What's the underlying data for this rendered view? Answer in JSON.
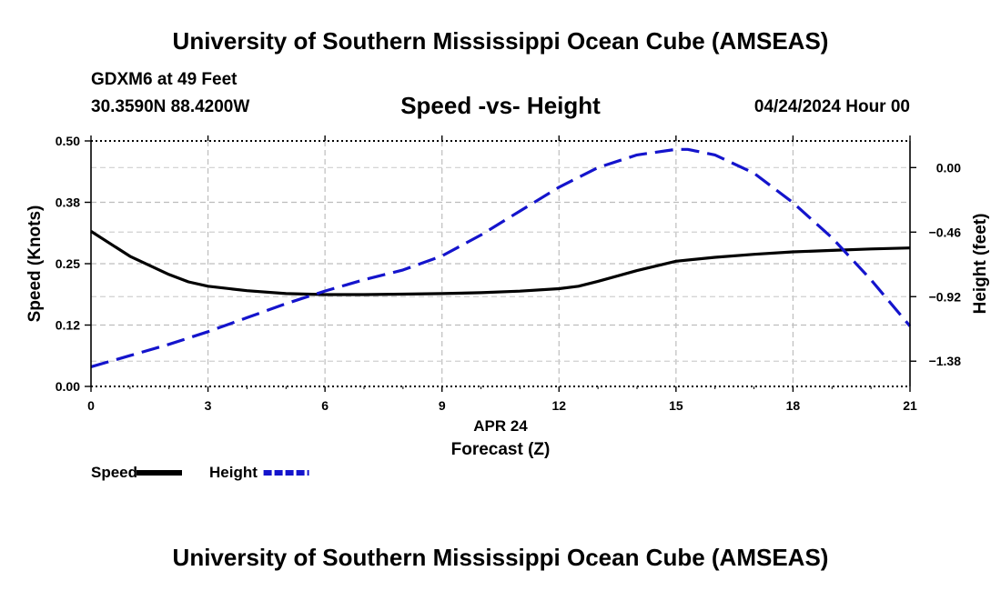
{
  "header": {
    "title": "University of Southern Mississippi Ocean Cube (AMSEAS)",
    "station": "GDXM6 at 49 Feet",
    "coordinates": "30.3590N  88.4200W",
    "datetime": "04/24/2024 Hour 00"
  },
  "footer": {
    "title": "University of Southern Mississippi Ocean Cube (AMSEAS)"
  },
  "chart_data": {
    "type": "line",
    "title": "Speed -vs- Height",
    "xlabel": "Forecast (Z)",
    "xlabel_date": "APR 24",
    "ylabel": "Speed (Knots)",
    "ylabel_right": "Height (feet)",
    "xlim": [
      0,
      21
    ],
    "ylim": [
      0,
      0.5
    ],
    "ylim_right": [
      -1.56,
      0.19
    ],
    "x_ticks": [
      0,
      3,
      6,
      9,
      12,
      15,
      18,
      21
    ],
    "x_tick_labels": [
      "0",
      "3",
      "6",
      "9",
      "12",
      "15",
      "18",
      "21"
    ],
    "y_ticks": [
      0,
      0.125,
      0.25,
      0.375,
      0.5
    ],
    "y_tick_labels": [
      "0.00",
      "0.12",
      "0.25",
      "0.38",
      "0.50"
    ],
    "y_right_ticks": [
      0.0,
      -0.46,
      -0.92,
      -1.38
    ],
    "y_right_tick_labels": [
      "0.00",
      "−0.46",
      "−0.92",
      "−1.38"
    ],
    "grid": true,
    "legend_position": "bottom-left",
    "series": [
      {
        "name": "Speed",
        "axis": "left",
        "color": "#000000",
        "dash": "solid",
        "x": [
          0,
          1,
          2,
          2.5,
          3,
          4,
          5,
          6,
          7,
          8,
          9,
          10,
          11,
          12,
          12.5,
          13,
          14,
          15,
          16,
          17,
          18,
          19,
          20,
          21
        ],
        "values": [
          0.316,
          0.265,
          0.228,
          0.213,
          0.204,
          0.195,
          0.189,
          0.187,
          0.187,
          0.188,
          0.189,
          0.191,
          0.194,
          0.199,
          0.204,
          0.214,
          0.236,
          0.255,
          0.263,
          0.269,
          0.274,
          0.277,
          0.28,
          0.282
        ]
      },
      {
        "name": "Height",
        "axis": "right",
        "color": "#1414cc",
        "dash": "dashed",
        "x": [
          0,
          1,
          2,
          3,
          4,
          5,
          6,
          7,
          8,
          9,
          10,
          11,
          12,
          13,
          14,
          15,
          15.3,
          16,
          17,
          18,
          19,
          20,
          21
        ],
        "values": [
          -1.42,
          -1.34,
          -1.26,
          -1.17,
          -1.07,
          -0.97,
          -0.88,
          -0.8,
          -0.73,
          -0.63,
          -0.48,
          -0.31,
          -0.14,
          0.0,
          0.09,
          0.13,
          0.13,
          0.09,
          -0.04,
          -0.25,
          -0.5,
          -0.8,
          -1.13
        ]
      }
    ]
  }
}
